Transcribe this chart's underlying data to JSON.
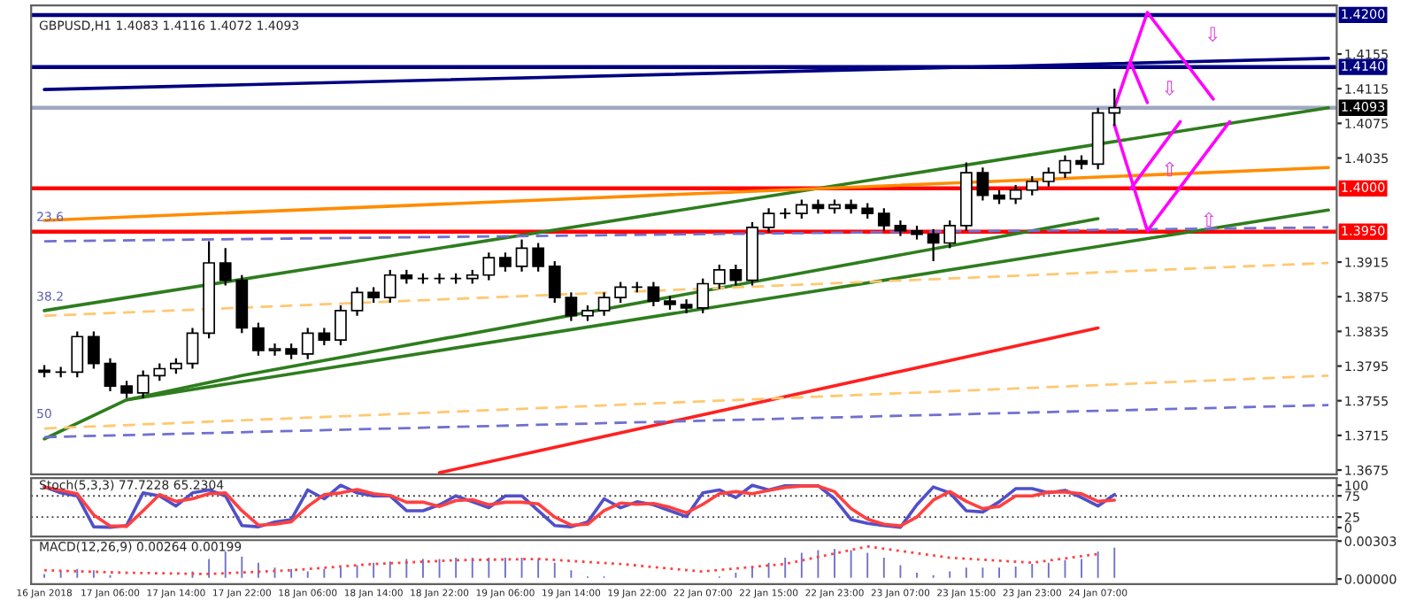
{
  "chart_data": [
    {
      "type": "candlestick",
      "title": "GBPUSD,H1 1.4083 1.4116 1.4072 1.4093",
      "ohlc": [
        [
          1.379,
          1.3796,
          1.3782,
          1.3788
        ],
        [
          1.3788,
          1.3794,
          1.3782,
          1.3788
        ],
        [
          1.3788,
          1.3835,
          1.3782,
          1.3829
        ],
        [
          1.3829,
          1.3835,
          1.3792,
          1.3798
        ],
        [
          1.3798,
          1.3804,
          1.3766,
          1.3772
        ],
        [
          1.3772,
          1.3778,
          1.3758,
          1.3764
        ],
        [
          1.3764,
          1.379,
          1.3758,
          1.3784
        ],
        [
          1.3784,
          1.3798,
          1.3778,
          1.3792
        ],
        [
          1.3792,
          1.3804,
          1.3786,
          1.3798
        ],
        [
          1.3798,
          1.3839,
          1.3792,
          1.3833
        ],
        [
          1.3833,
          1.3939,
          1.3827,
          1.3914
        ],
        [
          1.3914,
          1.3931,
          1.3888,
          1.3894
        ],
        [
          1.3894,
          1.39,
          1.3833,
          1.3839
        ],
        [
          1.3839,
          1.3845,
          1.3807,
          1.3813
        ],
        [
          1.3813,
          1.3821,
          1.3807,
          1.3815
        ],
        [
          1.3815,
          1.3821,
          1.3803,
          1.3809
        ],
        [
          1.3809,
          1.3839,
          1.3803,
          1.3833
        ],
        [
          1.3833,
          1.3839,
          1.3819,
          1.3825
        ],
        [
          1.3825,
          1.3865,
          1.3819,
          1.3859
        ],
        [
          1.3859,
          1.3886,
          1.3853,
          1.388
        ],
        [
          1.388,
          1.3886,
          1.3868,
          1.3874
        ],
        [
          1.3874,
          1.3906,
          1.3868,
          1.39
        ],
        [
          1.39,
          1.3906,
          1.389,
          1.3896
        ],
        [
          1.3896,
          1.3902,
          1.389,
          1.3896
        ],
        [
          1.3896,
          1.3902,
          1.389,
          1.3896
        ],
        [
          1.3896,
          1.3902,
          1.389,
          1.3896
        ],
        [
          1.3896,
          1.3906,
          1.389,
          1.39
        ],
        [
          1.39,
          1.3926,
          1.3894,
          1.392
        ],
        [
          1.392,
          1.3926,
          1.3904,
          1.391
        ],
        [
          1.391,
          1.3941,
          1.3904,
          1.3931
        ],
        [
          1.3931,
          1.3937,
          1.3904,
          1.391
        ],
        [
          1.391,
          1.3916,
          1.3868,
          1.3874
        ],
        [
          1.3874,
          1.388,
          1.3847,
          1.3853
        ],
        [
          1.3853,
          1.3865,
          1.3847,
          1.3859
        ],
        [
          1.3859,
          1.388,
          1.3853,
          1.3874
        ],
        [
          1.3874,
          1.3892,
          1.3868,
          1.3886
        ],
        [
          1.3886,
          1.3892,
          1.388,
          1.3886
        ],
        [
          1.3886,
          1.3892,
          1.3864,
          1.387
        ],
        [
          1.387,
          1.3876,
          1.386,
          1.3866
        ],
        [
          1.3866,
          1.3872,
          1.3856,
          1.3862
        ],
        [
          1.3862,
          1.3896,
          1.3856,
          1.389
        ],
        [
          1.389,
          1.3912,
          1.3884,
          1.3906
        ],
        [
          1.3906,
          1.3912,
          1.3888,
          1.3894
        ],
        [
          1.3894,
          1.3961,
          1.3888,
          1.3955
        ],
        [
          1.3955,
          1.3977,
          1.3949,
          1.3971
        ],
        [
          1.3971,
          1.3977,
          1.3965,
          1.3971
        ],
        [
          1.3971,
          1.3987,
          1.3965,
          1.3981
        ],
        [
          1.3981,
          1.3987,
          1.3971,
          1.3977
        ],
        [
          1.3977,
          1.3987,
          1.3971,
          1.3981
        ],
        [
          1.3981,
          1.3987,
          1.3971,
          1.3977
        ],
        [
          1.3977,
          1.3983,
          1.3965,
          1.3971
        ],
        [
          1.3971,
          1.3977,
          1.3951,
          1.3957
        ],
        [
          1.3957,
          1.3963,
          1.3945,
          1.3951
        ],
        [
          1.3951,
          1.3957,
          1.3941,
          1.3947
        ],
        [
          1.3947,
          1.3953,
          1.3916,
          1.3937
        ],
        [
          1.3937,
          1.3963,
          1.3931,
          1.3957
        ],
        [
          1.3957,
          1.403,
          1.3951,
          1.4018
        ],
        [
          1.4018,
          1.4024,
          1.3986,
          1.3992
        ],
        [
          1.3992,
          1.3998,
          1.3982,
          1.3988
        ],
        [
          1.3988,
          1.4004,
          1.3982,
          1.3998
        ],
        [
          1.3998,
          1.4014,
          1.3992,
          1.4008
        ],
        [
          1.4008,
          1.4024,
          1.4002,
          1.4018
        ],
        [
          1.4018,
          1.4038,
          1.4012,
          1.4032
        ],
        [
          1.4032,
          1.4038,
          1.4022,
          1.4028
        ],
        [
          1.4028,
          1.4093,
          1.4022,
          1.4087
        ],
        [
          1.4087,
          1.4115,
          1.4072,
          1.4093
        ],
        null,
        null,
        null,
        null,
        null,
        null,
        null,
        null,
        null,
        null,
        null,
        null,
        null
      ],
      "series": [
        {
          "type": "line",
          "color": "#2e7d1e",
          "values": [
            1.3859,
            null,
            null,
            null,
            null,
            null,
            null,
            null,
            null,
            null,
            null,
            null,
            null,
            null,
            null,
            null,
            null,
            null,
            null,
            null,
            null,
            null,
            null,
            null,
            null,
            null,
            null,
            null,
            null,
            null,
            null,
            null,
            null,
            null,
            null,
            null,
            null,
            null,
            null,
            null,
            null,
            null,
            null,
            null,
            null,
            null,
            null,
            null,
            null,
            null,
            null,
            null,
            null,
            null,
            null,
            null,
            null,
            null,
            null,
            null,
            null,
            null,
            null,
            null,
            null,
            null,
            null,
            null,
            null,
            null,
            null,
            null,
            null,
            null,
            null,
            null,
            null,
            null,
            1.4093
          ]
        },
        {
          "type": "line",
          "color": "#2e7d1e",
          "values": [
            1.3711,
            null,
            null,
            null,
            null,
            1.3756,
            null,
            null,
            null,
            null,
            null,
            null,
            null,
            null,
            null,
            null,
            null,
            null,
            null,
            null,
            null,
            null,
            null,
            null,
            null,
            null,
            null,
            null,
            null,
            null,
            null,
            null,
            null,
            null,
            null,
            null,
            null,
            null,
            null,
            null,
            null,
            null,
            null,
            null,
            null,
            null,
            null,
            null,
            null,
            null,
            null,
            null,
            null,
            null,
            null,
            null,
            null,
            null,
            null,
            null,
            null,
            null,
            null,
            null,
            null,
            null,
            null,
            null,
            null,
            null,
            null,
            null,
            null,
            null,
            null,
            null,
            null,
            null,
            1.3975
          ]
        },
        {
          "type": "line",
          "color": "#2e7d1e",
          "values": [
            null,
            null,
            null,
            null,
            null,
            1.3756,
            null,
            null,
            null,
            null,
            null,
            null,
            1.3784,
            null,
            null,
            null,
            null,
            null,
            null,
            null,
            null,
            null,
            null,
            null,
            null,
            null,
            null,
            null,
            null,
            null,
            null,
            null,
            null,
            null,
            null,
            null,
            null,
            null,
            null,
            null,
            null,
            null,
            null,
            null,
            null,
            null,
            null,
            null,
            null,
            null,
            null,
            null,
            null,
            null,
            null,
            null,
            null,
            null,
            null,
            null,
            null,
            null,
            null,
            null,
            1.3965,
            null,
            null,
            null,
            null,
            null,
            null,
            null,
            null,
            null,
            null,
            null,
            null,
            null,
            null
          ]
        },
        {
          "type": "line",
          "color": "#ff8c00",
          "values": [
            1.3963,
            null,
            null,
            null,
            null,
            null,
            null,
            null,
            null,
            null,
            null,
            null,
            null,
            null,
            null,
            null,
            null,
            null,
            null,
            null,
            null,
            null,
            null,
            null,
            null,
            null,
            null,
            null,
            null,
            null,
            null,
            null,
            null,
            null,
            null,
            null,
            null,
            null,
            null,
            null,
            null,
            null,
            null,
            null,
            null,
            null,
            null,
            null,
            null,
            null,
            null,
            null,
            null,
            null,
            null,
            null,
            null,
            null,
            null,
            null,
            null,
            null,
            null,
            null,
            null,
            null,
            null,
            null,
            null,
            null,
            null,
            null,
            null,
            null,
            null,
            null,
            null,
            null,
            1.4024
          ]
        },
        {
          "type": "line",
          "color": "#ff2020",
          "values": [
            null,
            null,
            null,
            null,
            null,
            null,
            null,
            null,
            null,
            null,
            null,
            null,
            null,
            null,
            null,
            null,
            null,
            null,
            null,
            null,
            null,
            null,
            null,
            null,
            1.3672,
            null,
            null,
            null,
            null,
            null,
            null,
            null,
            null,
            null,
            null,
            null,
            null,
            null,
            null,
            null,
            null,
            null,
            null,
            null,
            null,
            null,
            null,
            null,
            null,
            null,
            null,
            null,
            null,
            null,
            null,
            null,
            null,
            null,
            null,
            null,
            null,
            null,
            null,
            null,
            1.3839,
            null,
            null,
            null,
            null,
            null,
            null,
            null,
            null,
            null,
            null,
            null,
            null,
            null,
            null
          ]
        },
        {
          "type": "line",
          "color": "#000080",
          "values": [
            1.4114,
            null,
            null,
            null,
            null,
            null,
            null,
            null,
            null,
            null,
            null,
            null,
            null,
            null,
            null,
            null,
            null,
            null,
            null,
            null,
            null,
            null,
            null,
            null,
            null,
            null,
            null,
            null,
            null,
            null,
            null,
            null,
            null,
            null,
            null,
            null,
            null,
            null,
            null,
            null,
            null,
            null,
            null,
            null,
            null,
            null,
            null,
            null,
            null,
            null,
            null,
            null,
            null,
            null,
            null,
            null,
            null,
            null,
            null,
            null,
            null,
            null,
            null,
            null,
            null,
            null,
            null,
            null,
            null,
            null,
            null,
            null,
            null,
            null,
            null,
            null,
            null,
            null,
            1.415
          ]
        },
        {
          "type": "line",
          "color": "#7070d0",
          "line_style": "dashed",
          "values": [
            1.3939,
            null,
            null,
            null,
            null,
            null,
            null,
            null,
            null,
            null,
            null,
            null,
            null,
            null,
            null,
            null,
            null,
            null,
            null,
            null,
            null,
            null,
            null,
            null,
            null,
            null,
            null,
            null,
            null,
            null,
            null,
            null,
            null,
            null,
            null,
            null,
            null,
            null,
            null,
            null,
            null,
            null,
            null,
            null,
            null,
            null,
            null,
            null,
            null,
            null,
            null,
            null,
            null,
            null,
            null,
            null,
            null,
            null,
            null,
            null,
            null,
            null,
            null,
            null,
            null,
            null,
            null,
            null,
            null,
            null,
            null,
            null,
            null,
            null,
            null,
            null,
            null,
            null,
            1.3955
          ]
        },
        {
          "type": "line",
          "color": "#ffc870",
          "line_style": "dashed",
          "values": [
            1.3853,
            null,
            null,
            null,
            null,
            null,
            null,
            null,
            null,
            null,
            null,
            null,
            null,
            null,
            null,
            null,
            null,
            null,
            null,
            null,
            null,
            null,
            null,
            null,
            null,
            null,
            null,
            null,
            null,
            null,
            null,
            null,
            null,
            null,
            null,
            null,
            null,
            null,
            null,
            null,
            null,
            null,
            null,
            null,
            null,
            null,
            null,
            null,
            null,
            null,
            null,
            null,
            null,
            null,
            null,
            null,
            null,
            null,
            null,
            null,
            null,
            null,
            null,
            null,
            null,
            null,
            null,
            null,
            null,
            null,
            null,
            null,
            null,
            null,
            null,
            null,
            null,
            null,
            1.3914
          ]
        },
        {
          "type": "line",
          "color": "#ffc870",
          "line_style": "dashed",
          "values": [
            1.3723,
            null,
            null,
            null,
            null,
            null,
            null,
            null,
            null,
            null,
            null,
            null,
            null,
            null,
            null,
            null,
            null,
            null,
            null,
            null,
            null,
            null,
            null,
            null,
            null,
            null,
            null,
            null,
            null,
            null,
            null,
            null,
            null,
            null,
            null,
            null,
            null,
            null,
            null,
            null,
            null,
            null,
            null,
            null,
            null,
            null,
            null,
            null,
            null,
            null,
            null,
            null,
            null,
            null,
            null,
            null,
            null,
            null,
            null,
            null,
            null,
            null,
            null,
            null,
            null,
            null,
            null,
            null,
            null,
            null,
            null,
            null,
            null,
            null,
            null,
            null,
            null,
            null,
            1.3784
          ]
        },
        {
          "type": "line",
          "color": "#7070d0",
          "line_style": "dashed",
          "values": [
            1.3713,
            null,
            null,
            null,
            null,
            null,
            null,
            null,
            null,
            null,
            null,
            null,
            null,
            null,
            null,
            null,
            null,
            null,
            null,
            null,
            null,
            null,
            null,
            null,
            null,
            null,
            null,
            null,
            null,
            null,
            null,
            null,
            null,
            null,
            null,
            null,
            null,
            null,
            null,
            null,
            null,
            null,
            null,
            null,
            null,
            null,
            null,
            null,
            null,
            null,
            null,
            null,
            null,
            null,
            null,
            null,
            null,
            null,
            null,
            null,
            null,
            null,
            null,
            null,
            null,
            null,
            null,
            null,
            null,
            null,
            null,
            null,
            null,
            null,
            null,
            null,
            null,
            null,
            1.375
          ]
        },
        {
          "type": "line",
          "color": "#ff00ff",
          "values": [
            null,
            null,
            null,
            null,
            null,
            null,
            null,
            null,
            null,
            null,
            null,
            null,
            null,
            null,
            null,
            null,
            null,
            null,
            null,
            null,
            null,
            null,
            null,
            null,
            null,
            null,
            null,
            null,
            null,
            null,
            null,
            null,
            null,
            null,
            null,
            null,
            null,
            null,
            null,
            null,
            null,
            null,
            null,
            null,
            null,
            null,
            null,
            null,
            null,
            null,
            null,
            null,
            null,
            null,
            null,
            null,
            null,
            null,
            null,
            null,
            null,
            null,
            null,
            null,
            null,
            1.4093,
            null,
            1.4203,
            null,
            null,
            null,
            1.4103,
            null,
            null,
            null,
            null,
            null,
            null,
            null
          ]
        },
        {
          "type": "line",
          "color": "#ff00ff",
          "values": [
            null,
            null,
            null,
            null,
            null,
            null,
            null,
            null,
            null,
            null,
            null,
            null,
            null,
            null,
            null,
            null,
            null,
            null,
            null,
            null,
            null,
            null,
            null,
            null,
            null,
            null,
            null,
            null,
            null,
            null,
            null,
            null,
            null,
            null,
            null,
            null,
            null,
            null,
            null,
            null,
            null,
            null,
            null,
            null,
            null,
            null,
            null,
            null,
            null,
            null,
            null,
            null,
            null,
            null,
            null,
            null,
            null,
            null,
            null,
            null,
            null,
            null,
            null,
            null,
            null,
            null,
            1.4144,
            1.4099,
            null,
            null,
            null,
            null,
            null,
            null,
            null,
            null,
            null,
            null,
            null
          ]
        },
        {
          "type": "line",
          "color": "#ff00ff",
          "values": [
            null,
            null,
            null,
            null,
            null,
            null,
            null,
            null,
            null,
            null,
            null,
            null,
            null,
            null,
            null,
            null,
            null,
            null,
            null,
            null,
            null,
            null,
            null,
            null,
            null,
            null,
            null,
            null,
            null,
            null,
            null,
            null,
            null,
            null,
            null,
            null,
            null,
            null,
            null,
            null,
            null,
            null,
            null,
            null,
            null,
            null,
            null,
            null,
            null,
            null,
            null,
            null,
            null,
            null,
            null,
            null,
            null,
            null,
            null,
            null,
            null,
            null,
            null,
            null,
            null,
            1.4073,
            null,
            1.3951,
            null,
            null,
            null,
            null,
            1.4077,
            null,
            null,
            null,
            null,
            null,
            null
          ]
        },
        {
          "type": "line",
          "color": "#ff00ff",
          "values": [
            null,
            null,
            null,
            null,
            null,
            null,
            null,
            null,
            null,
            null,
            null,
            null,
            null,
            null,
            null,
            null,
            null,
            null,
            null,
            null,
            null,
            null,
            null,
            null,
            null,
            null,
            null,
            null,
            null,
            null,
            null,
            null,
            null,
            null,
            null,
            null,
            null,
            null,
            null,
            null,
            null,
            null,
            null,
            null,
            null,
            null,
            null,
            null,
            null,
            null,
            null,
            null,
            null,
            null,
            null,
            null,
            null,
            null,
            null,
            null,
            null,
            null,
            null,
            null,
            null,
            null,
            1.4,
            null,
            null,
            1.4077,
            null,
            null,
            null,
            null,
            null,
            null,
            null,
            null,
            null
          ]
        }
      ],
      "ref_lines": [
        {
          "axis": "y",
          "value": 1.42,
          "label": "1.4200",
          "color": "#000080"
        },
        {
          "axis": "y",
          "value": 1.414,
          "label": "1.4140",
          "color": "#000080"
        },
        {
          "axis": "y",
          "value": 1.4093,
          "label": "1.4093",
          "color": "#a0a8c0"
        },
        {
          "axis": "y",
          "value": 1.4,
          "label": "1.4000",
          "color": "#ff0000"
        },
        {
          "axis": "y",
          "value": 1.395,
          "label": "1.3950",
          "color": "#ff0000"
        }
      ],
      "annotations": [
        "23.6",
        "38.2",
        "50",
        "⇩",
        "⇩",
        {
          "text": "⇧",
          "y": 1.402
        },
        {
          "text": "⇧",
          "y": 1.3962
        }
      ],
      "ylim": [
        1.367,
        1.4211
      ],
      "yticks": [
        1.4155,
        1.4115,
        1.4075,
        1.4035,
        1.3915,
        1.3875,
        1.3835,
        1.3795,
        1.3755,
        1.3715,
        1.3675
      ]
    },
    {
      "type": "line",
      "title": "Stoch(5,3,3) 77.7228 65.2304",
      "series": [
        {
          "color": "#5050c8",
          "values": [
            96,
            82,
            75,
            2,
            1,
            5,
            82,
            75,
            51,
            82,
            89,
            75,
            5,
            2,
            13,
            19,
            89,
            68,
            100,
            82,
            75,
            75,
            40,
            40,
            54,
            75,
            61,
            47,
            75,
            75,
            40,
            5,
            2,
            13,
            68,
            47,
            61,
            54,
            40,
            26,
            82,
            89,
            71,
            100,
            89,
            99,
            99,
            99,
            68,
            19,
            10,
            5,
            1,
            54,
            96,
            82,
            40,
            37,
            61,
            92,
            92,
            82,
            88,
            71,
            51,
            78,
            null,
            null,
            null,
            null,
            null,
            null,
            null,
            null,
            null,
            null,
            null,
            null,
            null
          ]
        },
        {
          "color": "#ff4040",
          "values": [
            96,
            88,
            80,
            30,
            4,
            3,
            40,
            78,
            62,
            68,
            80,
            82,
            40,
            6,
            8,
            14,
            50,
            78,
            82,
            90,
            80,
            76,
            60,
            60,
            50,
            64,
            66,
            54,
            60,
            60,
            56,
            25,
            6,
            8,
            40,
            58,
            55,
            57,
            48,
            35,
            55,
            80,
            85,
            80,
            88,
            95,
            98,
            98,
            85,
            45,
            20,
            8,
            4,
            25,
            65,
            85,
            62,
            45,
            50,
            75,
            75,
            84,
            84,
            80,
            62,
            65,
            null,
            null,
            null,
            null,
            null,
            null,
            null,
            null,
            null,
            null,
            null,
            null,
            null
          ]
        }
      ],
      "ref_lines": [
        {
          "axis": "y",
          "value": 75,
          "line_style": "dotted",
          "color": "#404040"
        },
        {
          "axis": "y",
          "value": 25,
          "line_style": "dotted",
          "color": "#404040"
        }
      ],
      "ylim": [
        -21,
        117
      ],
      "yticks": [
        100,
        75,
        25,
        0
      ]
    },
    {
      "type": "bar",
      "title": "MACD(12,26,9) 0.00264 0.00199",
      "categories": [
        "16 Jan 2018",
        null,
        null,
        null,
        "17 Jan 06:00",
        null,
        null,
        null,
        "17 Jan 14:00",
        null,
        null,
        null,
        "17 Jan 22:00",
        null,
        null,
        null,
        "18 Jan 06:00",
        null,
        null,
        null,
        "18 Jan 14:00",
        null,
        null,
        null,
        "18 Jan 22:00",
        null,
        null,
        null,
        "19 Jan 06:00",
        null,
        null,
        null,
        "19 Jan 14:00",
        null,
        null,
        null,
        "19 Jan 22:00",
        null,
        null,
        null,
        "22 Jan 07:00",
        null,
        null,
        null,
        "22 Jan 15:00",
        null,
        null,
        null,
        "22 Jan 23:00",
        null,
        null,
        null,
        "23 Jan 07:00",
        null,
        null,
        null,
        "23 Jan 15:00",
        null,
        null,
        null,
        "23 Jan 23:00",
        null,
        null,
        null,
        "24 Jan 07:00",
        null,
        null,
        null,
        null,
        null,
        null,
        null,
        null,
        null,
        null,
        null,
        null,
        null,
        null
      ],
      "series": [
        {
          "type": "bar",
          "color": "#7070c8",
          "values": [
            0.0005,
            0.0007,
            0.0009,
            0.0008,
            0.0004,
            0.0002,
            0.0001,
            0.0001,
            0.0002,
            0.0007,
            0.0017,
            0.0023,
            0.0019,
            0.0014,
            0.001,
            0.0009,
            0.0007,
            0.0009,
            0.001,
            0.0012,
            0.0014,
            0.0015,
            0.0017,
            0.0017,
            0.0017,
            0.0018,
            0.0018,
            0.0018,
            0.0018,
            0.0018,
            0.0017,
            0.0014,
            0.0008,
            0.0003,
            0.0003,
            0.0002,
            0.0001,
            0.0001,
            0.0001,
            0.0001,
            0.0002,
            0.0003,
            0.0006,
            0.001,
            0.0014,
            0.0018,
            0.0022,
            0.0024,
            0.0025,
            0.0024,
            0.0022,
            0.0018,
            0.0012,
            0.0006,
            0.0004,
            0.0007,
            0.001,
            0.001,
            0.001,
            0.0011,
            0.0013,
            0.0014,
            0.0016,
            0.0017,
            0.0023,
            0.0026,
            null,
            null,
            null,
            null,
            null,
            null,
            null,
            null,
            null,
            null,
            null,
            null,
            null
          ]
        },
        {
          "type": "line",
          "color": "#ff4040",
          "line_style": "dotted",
          "values": [
            0.0007,
            null,
            null,
            null,
            null,
            0.0005,
            null,
            null,
            null,
            null,
            0.0004,
            null,
            null,
            null,
            null,
            0.0007,
            null,
            null,
            null,
            null,
            0.0012,
            null,
            null,
            null,
            null,
            0.0015,
            null,
            null,
            null,
            null,
            0.0016,
            null,
            null,
            null,
            null,
            0.0012,
            null,
            null,
            null,
            null,
            0.0006,
            null,
            null,
            null,
            null,
            0.0012,
            null,
            null,
            null,
            null,
            0.0026,
            null,
            null,
            null,
            null,
            0.0017,
            null,
            null,
            null,
            null,
            0.0013,
            null,
            null,
            null,
            0.002,
            null,
            null,
            null,
            null,
            null,
            null,
            null,
            null,
            null,
            null,
            null,
            null,
            null,
            null
          ]
        }
      ],
      "ylim": [
        -0.0004,
        0.0031
      ],
      "yticks": [
        0.00303,
        {
          "value": 0,
          "label": "0.00000"
        }
      ]
    }
  ]
}
